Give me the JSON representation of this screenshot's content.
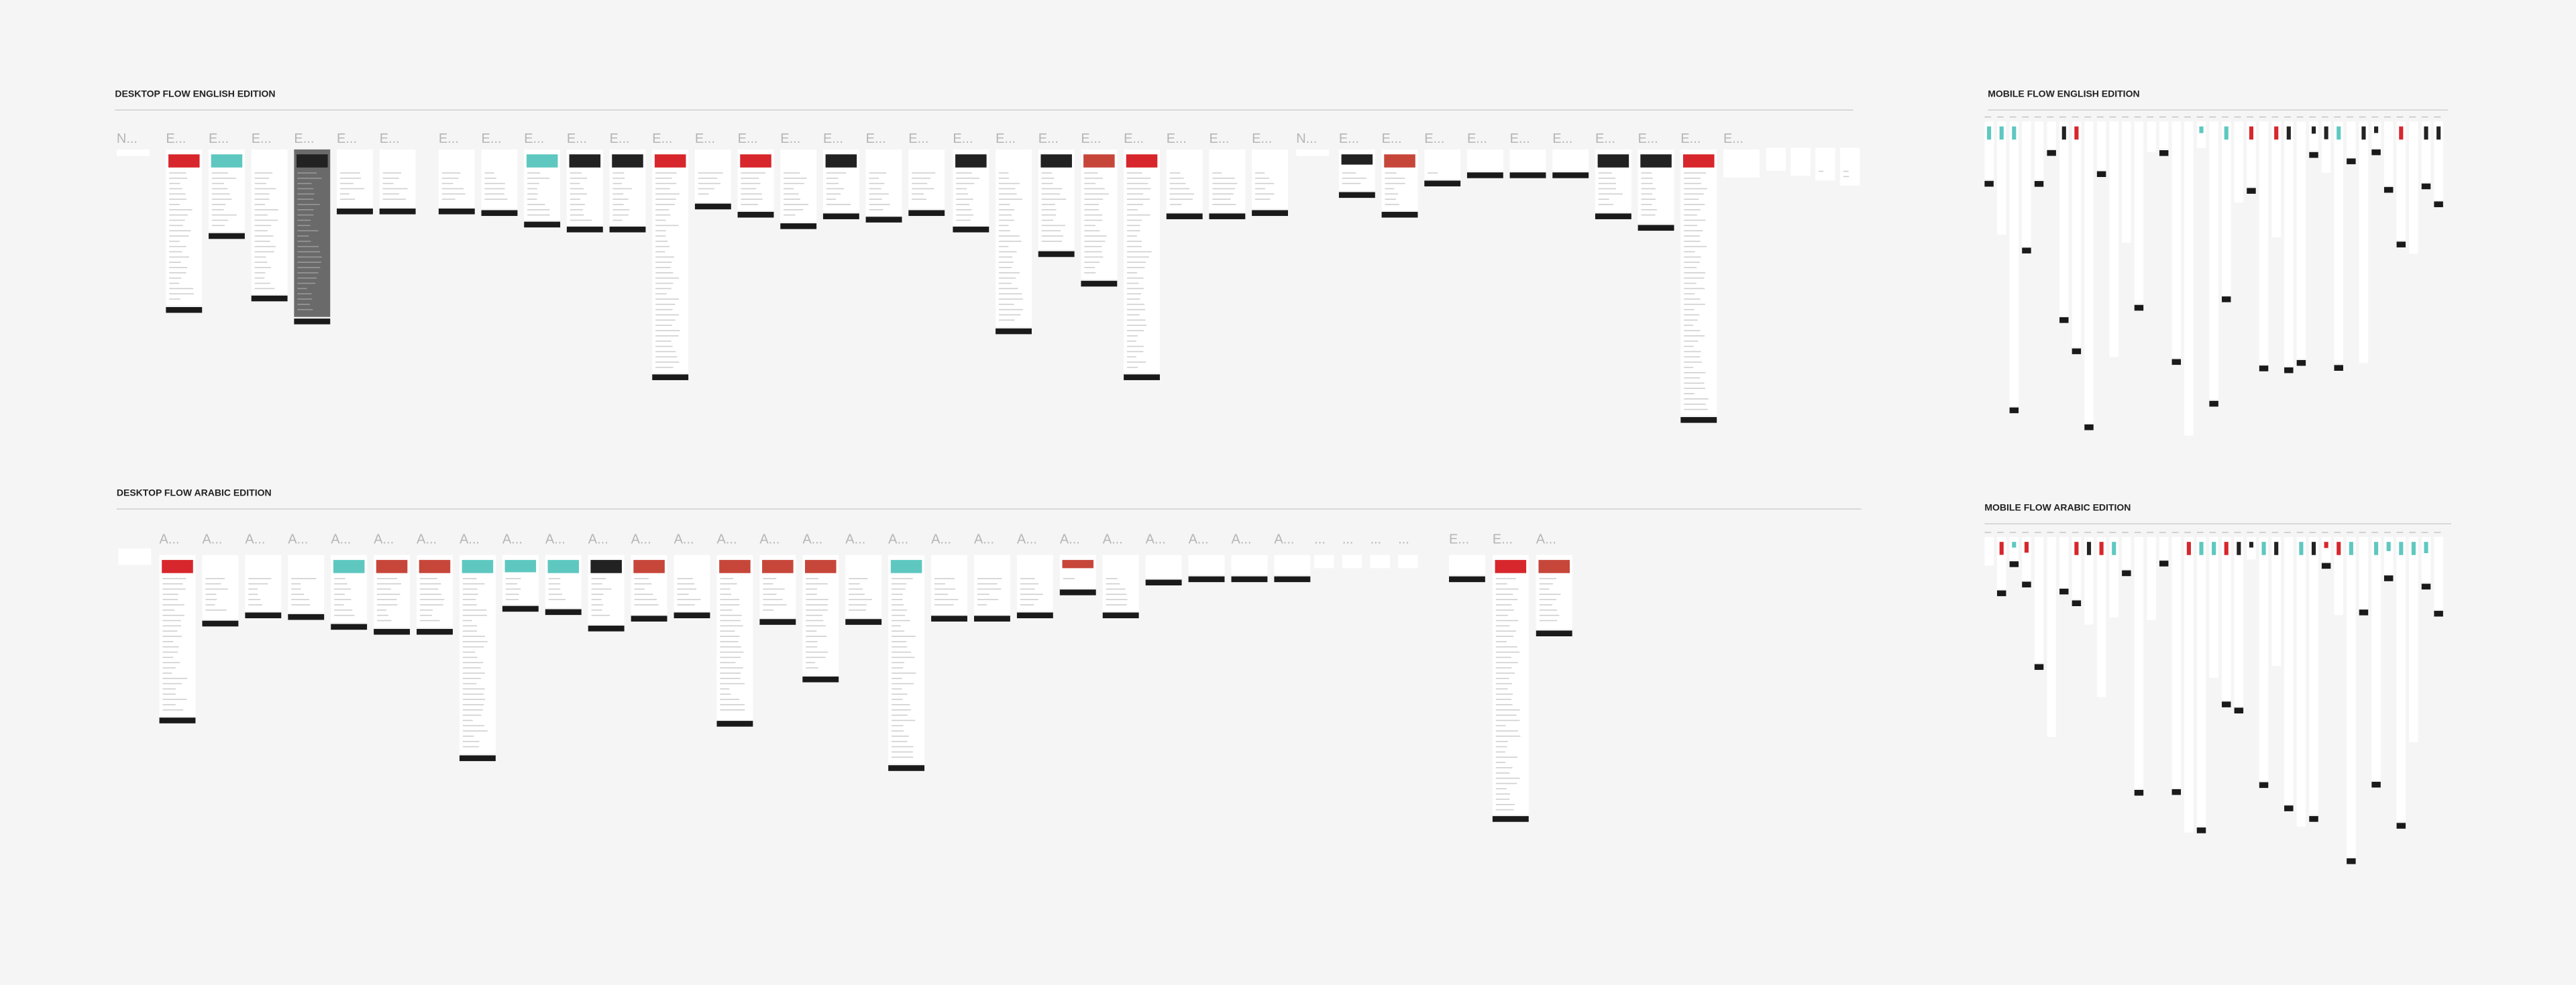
{
  "sections": [
    {
      "title": "DESKTOP FLOW ENGLISH EDITION",
      "frames": [
        "N...",
        "E...",
        "E...",
        "E...",
        "E...",
        "E...",
        "E...",
        "E...",
        "E...",
        "E...",
        "E...",
        "E...",
        "E...",
        "E...",
        "E...",
        "E...",
        "E...",
        "E...",
        "E...",
        "E...",
        "E...",
        "E...",
        "E...",
        "E...",
        "E...",
        "E...",
        "E...",
        "N...",
        "E...",
        "E...",
        "E...",
        "E...",
        "E...",
        "E...",
        "E...",
        "E...",
        "E...",
        "E..."
      ]
    },
    {
      "title": "MOBILE FLOW ENGLISH EDITION"
    },
    {
      "title": "DESKTOP FLOW ARABIC EDITION",
      "frames": [
        "A...",
        "A...",
        "A...",
        "A...",
        "A...",
        "A...",
        "A...",
        "A...",
        "A...",
        "A...",
        "A...",
        "A...",
        "A...",
        "A...",
        "A...",
        "A...",
        "A...",
        "A...",
        "A...",
        "A...",
        "A...",
        "A...",
        "A...",
        "A...",
        "A...",
        "A...",
        "A...",
        "...",
        "...",
        "...",
        "...",
        "E...",
        "E...",
        "A..."
      ]
    },
    {
      "title": "MOBILE FLOW ARABIC EDITION"
    }
  ]
}
